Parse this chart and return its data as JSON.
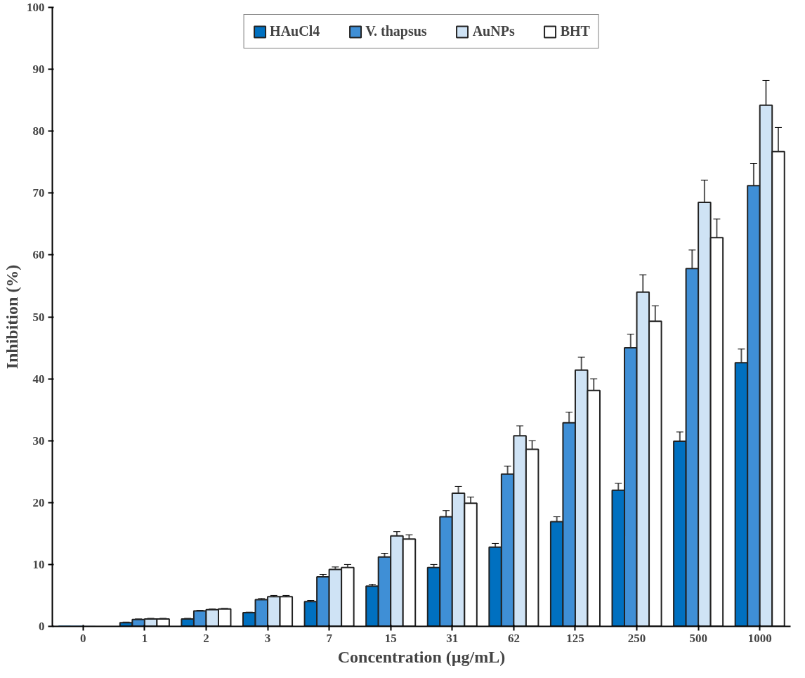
{
  "chart_data": {
    "type": "bar",
    "xlabel": "Concentration (µg/mL)",
    "ylabel": "Inhibition (%)",
    "categories": [
      "0",
      "1",
      "2",
      "3",
      "7",
      "15",
      "31",
      "62",
      "125",
      "250",
      "500",
      "1000"
    ],
    "series": [
      {
        "name": "HAuCl4",
        "color": "#0070c0",
        "values": [
          0,
          0.6,
          1.2,
          2.2,
          4.0,
          6.5,
          9.5,
          12.8,
          16.9,
          22.0,
          29.9,
          42.6
        ],
        "errors": [
          0,
          0.1,
          0.1,
          0.1,
          0.2,
          0.3,
          0.5,
          0.6,
          0.8,
          1.1,
          1.5,
          2.2
        ]
      },
      {
        "name": "V. thapsus",
        "color": "#3f8fd6",
        "values": [
          0,
          1.1,
          2.5,
          4.3,
          8.0,
          11.2,
          17.7,
          24.6,
          32.9,
          45.0,
          57.8,
          71.2
        ],
        "errors": [
          0,
          0.1,
          0.1,
          0.2,
          0.4,
          0.6,
          1.0,
          1.3,
          1.7,
          2.2,
          3.0,
          3.6
        ]
      },
      {
        "name": "AuNPs",
        "color": "#cfe3f5",
        "values": [
          0,
          1.2,
          2.7,
          4.8,
          9.2,
          14.6,
          21.5,
          30.8,
          41.4,
          54.0,
          68.5,
          84.2
        ],
        "errors": [
          0,
          0.1,
          0.1,
          0.2,
          0.4,
          0.7,
          1.1,
          1.6,
          2.1,
          2.8,
          3.6,
          4.0
        ]
      },
      {
        "name": "BHT",
        "color": "#ffffff",
        "values": [
          0,
          1.2,
          2.8,
          4.8,
          9.5,
          14.1,
          19.9,
          28.6,
          38.1,
          49.3,
          62.8,
          76.7
        ],
        "errors": [
          0,
          0.1,
          0.1,
          0.2,
          0.5,
          0.7,
          1.0,
          1.4,
          1.9,
          2.5,
          3.0,
          3.9
        ]
      }
    ],
    "ylim": [
      0,
      100
    ],
    "yticks": [
      0,
      10,
      20,
      30,
      40,
      50,
      60,
      70,
      80,
      90,
      100
    ],
    "grid": false,
    "legend": "top"
  }
}
